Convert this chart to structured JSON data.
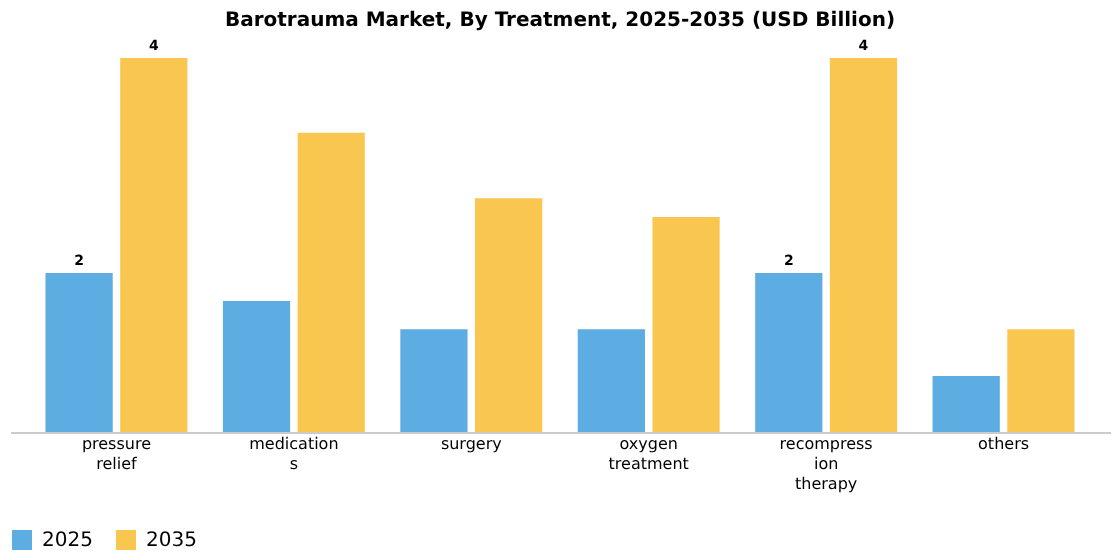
{
  "chart_data": {
    "type": "bar",
    "title": "Barotrauma Market, By Treatment, 2025-2035 (USD Billion)",
    "legend": "bottom",
    "categories": [
      "pressure relief",
      "medications",
      "surgery",
      "oxygen treatment",
      "recompression therapy",
      "others"
    ],
    "series": [
      {
        "name": "2025",
        "color": "#5dade2",
        "values": [
          1.7,
          1.4,
          1.1,
          1.1,
          1.7,
          0.6
        ],
        "value_labels": [
          "2",
          null,
          null,
          null,
          "2",
          null
        ]
      },
      {
        "name": "2035",
        "color": "#f9c74f",
        "values": [
          4.0,
          3.2,
          2.5,
          2.3,
          4.0,
          1.1
        ],
        "value_labels": [
          "4",
          null,
          null,
          null,
          "4",
          null
        ]
      }
    ],
    "grid": false
  }
}
